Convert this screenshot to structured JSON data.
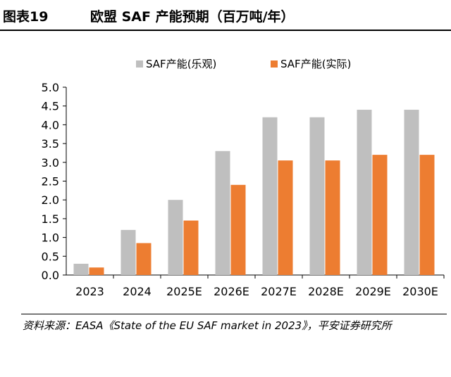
{
  "header": {
    "figure_number": "图表19",
    "title": "欧盟 SAF 产能预期（百万吨/年）"
  },
  "chart_data": {
    "type": "bar",
    "title": "欧盟 SAF 产能预期（百万吨/年）",
    "xlabel": "",
    "ylabel": "",
    "categories": [
      "2023",
      "2024",
      "2025E",
      "2026E",
      "2027E",
      "2028E",
      "2029E",
      "2030E"
    ],
    "series": [
      {
        "name": "SAF产能(乐观)",
        "color": "#bfbfbf",
        "values": [
          0.3,
          1.2,
          2.0,
          3.3,
          4.2,
          4.2,
          4.4,
          4.4
        ]
      },
      {
        "name": "SAF产能(实际)",
        "color": "#ed7d31",
        "values": [
          0.2,
          0.85,
          1.45,
          2.4,
          3.05,
          3.05,
          3.2,
          3.2
        ]
      }
    ],
    "ylim": [
      0,
      5
    ],
    "yticks": [
      "0.0",
      "0.5",
      "1.0",
      "1.5",
      "2.0",
      "2.5",
      "3.0",
      "3.5",
      "4.0",
      "4.5",
      "5.0"
    ],
    "grid": false,
    "legend_position": "top"
  },
  "footer": {
    "source": "资料来源：EASA《State of the EU SAF market in 2023》，平安证券研究所"
  }
}
